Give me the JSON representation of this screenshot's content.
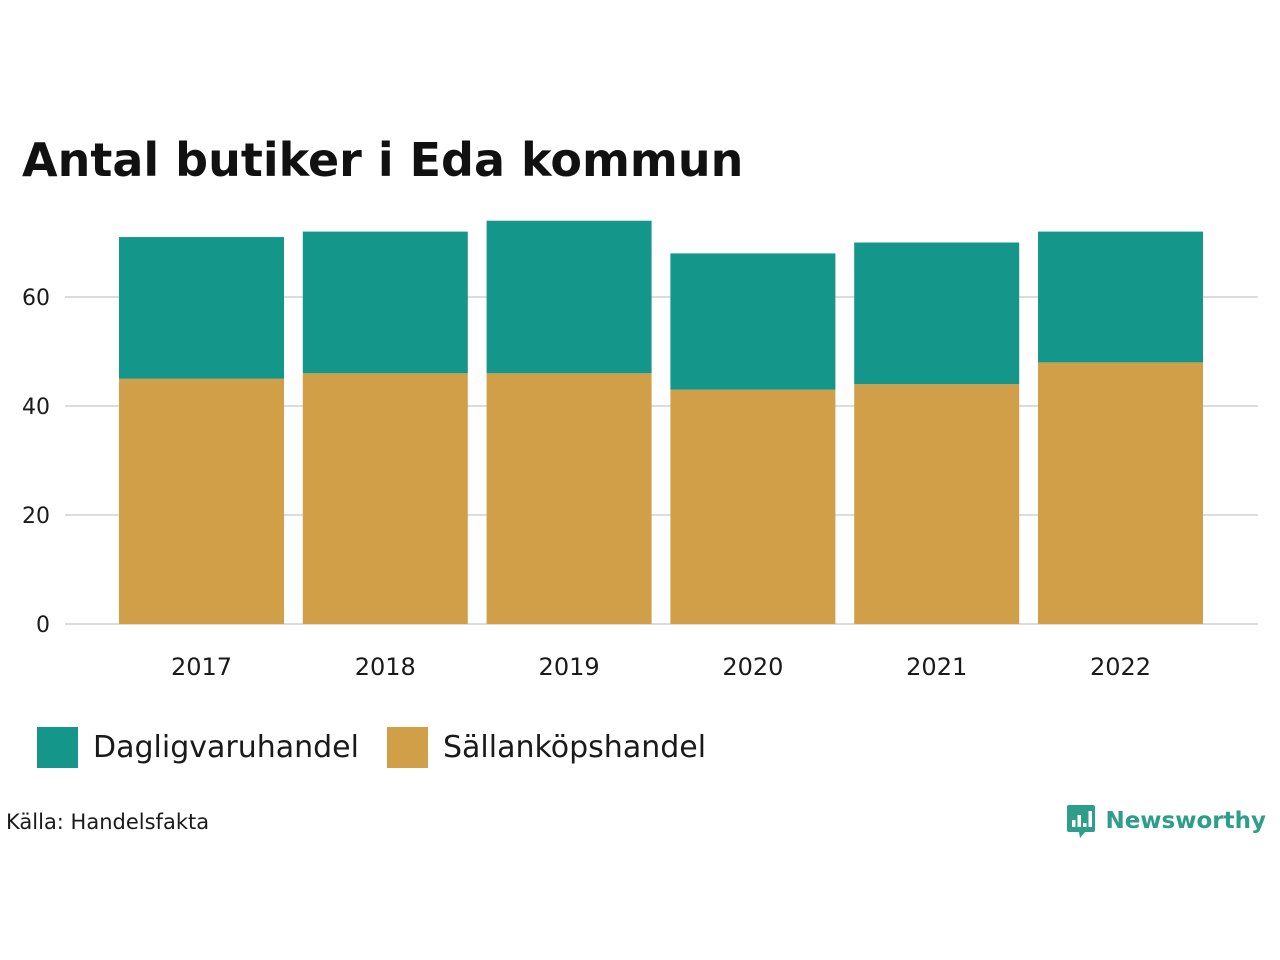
{
  "chart_data": {
    "type": "bar",
    "stacked": true,
    "title": "Antal butiker i Eda kommun",
    "xlabel": "",
    "ylabel": "",
    "categories": [
      "2017",
      "2018",
      "2019",
      "2020",
      "2021",
      "2022"
    ],
    "series": [
      {
        "name": "Sällanköpshandel",
        "color": "#d19f47",
        "values": [
          45,
          46,
          46,
          43,
          44,
          48
        ]
      },
      {
        "name": "Dagligvaruhandel",
        "color": "#14978a",
        "values": [
          26,
          26,
          28,
          25,
          26,
          24
        ]
      }
    ],
    "yticks": [
      0,
      20,
      40,
      60
    ],
    "ylim": [
      0,
      74
    ],
    "grid": true,
    "legend_position": "bottom-left"
  },
  "legend": {
    "items": [
      {
        "label": "Dagligvaruhandel",
        "color": "#14978a"
      },
      {
        "label": "Sällanköpshandel",
        "color": "#d19f47"
      }
    ]
  },
  "footer": {
    "source": "Källa: Handelsfakta",
    "brand": "Newsworthy",
    "brand_color": "#2e9e8a"
  },
  "icons": {
    "brand_icon": "newsworthy-logo-icon"
  }
}
